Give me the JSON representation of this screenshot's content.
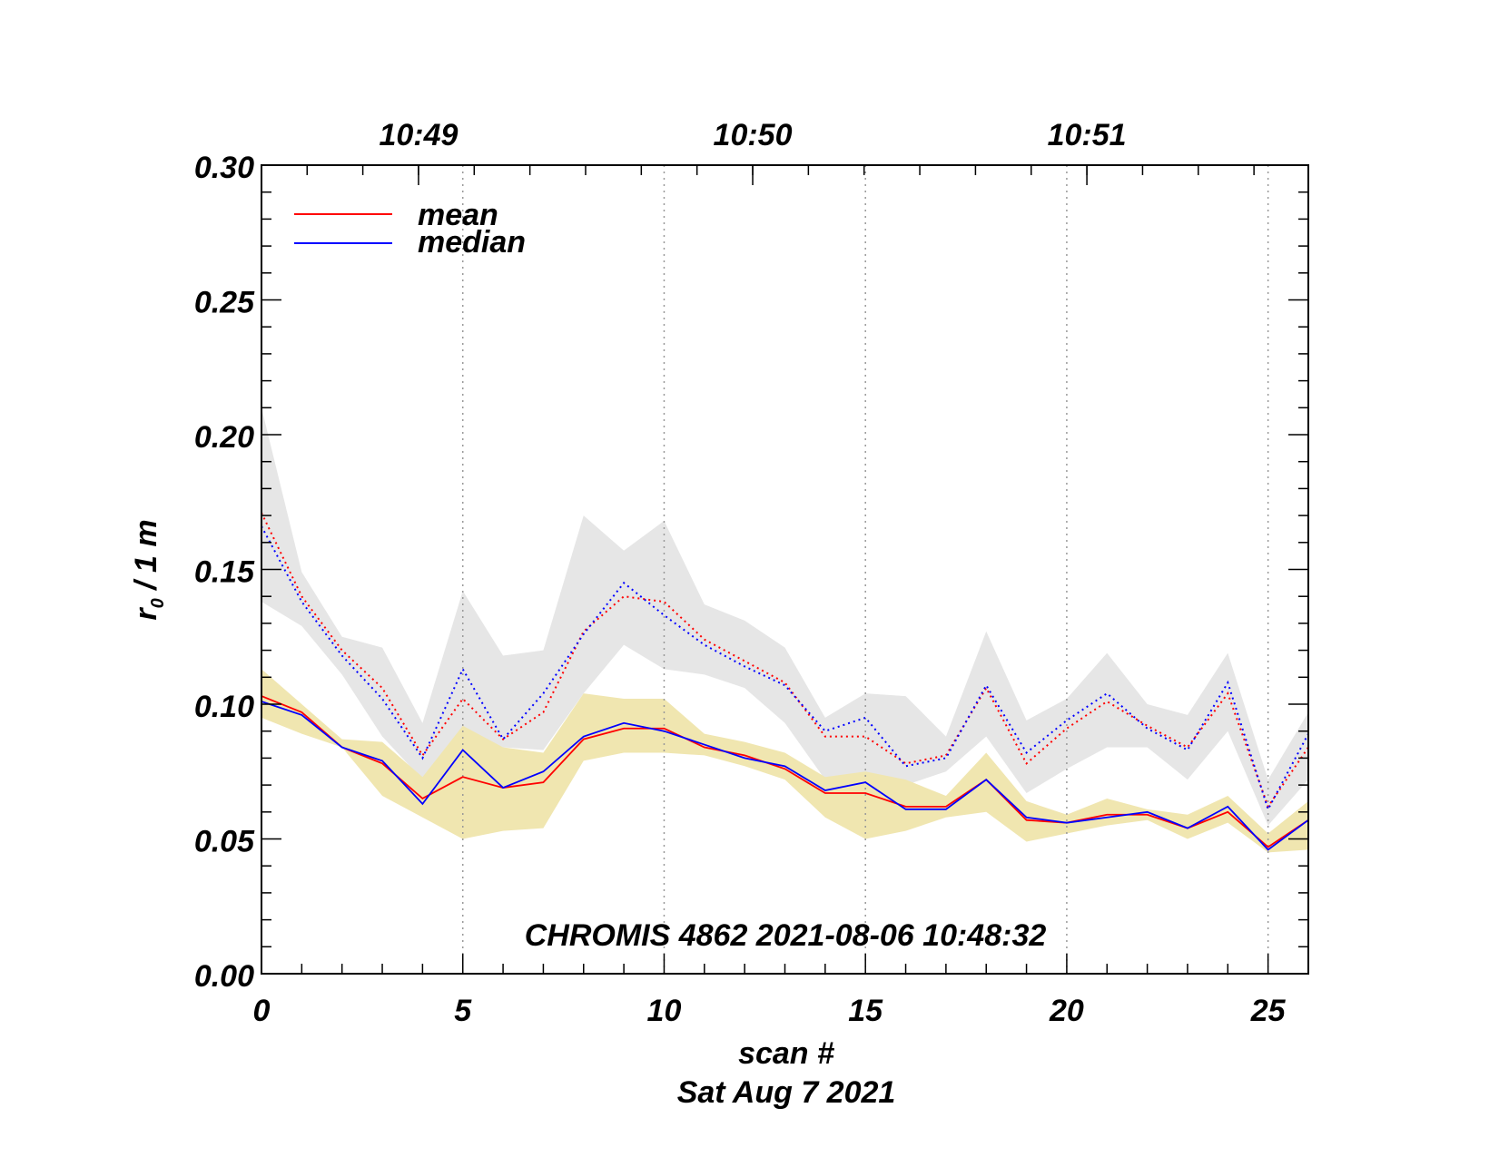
{
  "chart_data": {
    "type": "line",
    "title": "",
    "xlabel": "scan #",
    "xlabel2": "Sat Aug  7 2021",
    "ylabel": {
      "main": "r",
      "sub": "0",
      "rest": " / 1 m"
    },
    "xlim": [
      0,
      26
    ],
    "ylim": [
      0,
      0.3
    ],
    "x_ticks": [
      "0",
      "5",
      "10",
      "15",
      "20",
      "25"
    ],
    "y_ticks": [
      "0.00",
      "0.05",
      "0.10",
      "0.15",
      "0.20",
      "0.25",
      "0.30"
    ],
    "top_axis": {
      "labels": [
        {
          "x": 3.9,
          "text": "10:49"
        },
        {
          "x": 12.2,
          "text": "10:50"
        },
        {
          "x": 20.5,
          "text": "10:51"
        }
      ]
    },
    "vertical_gridlines": [
      5,
      10,
      15,
      20,
      25
    ],
    "annotation": "CHROMIS 4862 2021-08-06 10:48:32",
    "legend": [
      {
        "name": "mean",
        "color": "#ff0000"
      },
      {
        "name": "median",
        "color": "#0000ff"
      }
    ],
    "x": [
      0,
      1,
      2,
      3,
      4,
      5,
      6,
      7,
      8,
      9,
      10,
      11,
      12,
      13,
      14,
      15,
      16,
      17,
      18,
      19,
      20,
      21,
      22,
      23,
      24,
      25,
      26
    ],
    "series": [
      {
        "name": "mean",
        "color": "#ff0000",
        "style": "solid",
        "values": [
          0.103,
          0.097,
          0.084,
          0.078,
          0.065,
          0.073,
          0.069,
          0.071,
          0.087,
          0.091,
          0.091,
          0.084,
          0.081,
          0.076,
          0.067,
          0.067,
          0.062,
          0.062,
          0.072,
          0.057,
          0.056,
          0.059,
          0.059,
          0.054,
          0.06,
          0.047,
          0.057
        ]
      },
      {
        "name": "median",
        "color": "#0000ff",
        "style": "solid",
        "values": [
          0.101,
          0.096,
          0.084,
          0.079,
          0.063,
          0.083,
          0.069,
          0.075,
          0.088,
          0.093,
          0.09,
          0.085,
          0.08,
          0.077,
          0.068,
          0.071,
          0.061,
          0.061,
          0.072,
          0.058,
          0.056,
          0.058,
          0.06,
          0.054,
          0.062,
          0.046,
          0.057
        ]
      },
      {
        "name": "mean (upper)",
        "color": "#ff0000",
        "style": "dotted",
        "values": [
          0.171,
          0.14,
          0.12,
          0.106,
          0.081,
          0.102,
          0.087,
          0.097,
          0.127,
          0.14,
          0.138,
          0.124,
          0.116,
          0.108,
          0.088,
          0.088,
          0.078,
          0.081,
          0.106,
          0.078,
          0.091,
          0.101,
          0.092,
          0.084,
          0.104,
          0.062,
          0.084
        ]
      },
      {
        "name": "median (upper)",
        "color": "#0000ff",
        "style": "dotted",
        "values": [
          0.166,
          0.138,
          0.118,
          0.102,
          0.08,
          0.113,
          0.087,
          0.104,
          0.126,
          0.145,
          0.133,
          0.122,
          0.114,
          0.107,
          0.09,
          0.095,
          0.077,
          0.08,
          0.107,
          0.082,
          0.094,
          0.104,
          0.091,
          0.083,
          0.108,
          0.061,
          0.089
        ]
      }
    ],
    "bands": [
      {
        "name": "upper-band",
        "color": "#e6e6e6",
        "upper": [
          0.21,
          0.149,
          0.125,
          0.121,
          0.093,
          0.142,
          0.118,
          0.12,
          0.17,
          0.157,
          0.168,
          0.137,
          0.131,
          0.121,
          0.095,
          0.104,
          0.103,
          0.088,
          0.127,
          0.094,
          0.102,
          0.119,
          0.1,
          0.096,
          0.119,
          0.072,
          0.097
        ],
        "lower": [
          0.138,
          0.129,
          0.111,
          0.088,
          0.072,
          0.09,
          0.084,
          0.083,
          0.104,
          0.122,
          0.113,
          0.111,
          0.106,
          0.093,
          0.072,
          0.073,
          0.07,
          0.075,
          0.088,
          0.067,
          0.076,
          0.084,
          0.084,
          0.072,
          0.09,
          0.055,
          0.072
        ]
      },
      {
        "name": "lower-band",
        "color": "#f0e6b0",
        "upper": [
          0.113,
          0.1,
          0.087,
          0.086,
          0.073,
          0.092,
          0.084,
          0.082,
          0.104,
          0.102,
          0.102,
          0.089,
          0.086,
          0.082,
          0.073,
          0.075,
          0.072,
          0.066,
          0.082,
          0.064,
          0.059,
          0.065,
          0.061,
          0.059,
          0.066,
          0.052,
          0.064
        ],
        "lower": [
          0.095,
          0.089,
          0.084,
          0.066,
          0.058,
          0.05,
          0.053,
          0.054,
          0.079,
          0.082,
          0.082,
          0.081,
          0.077,
          0.072,
          0.058,
          0.05,
          0.053,
          0.058,
          0.06,
          0.049,
          0.052,
          0.055,
          0.057,
          0.05,
          0.056,
          0.045,
          0.046
        ]
      }
    ]
  }
}
